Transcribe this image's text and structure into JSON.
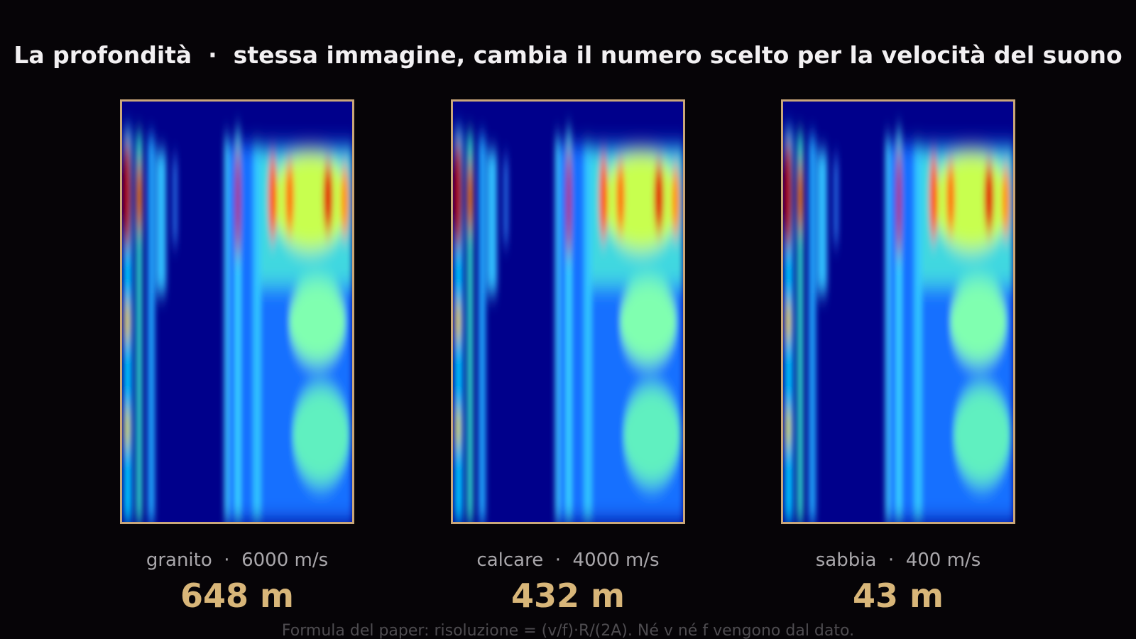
{
  "title": "La profondità  ·  stessa immagine, cambia il numero scelto per la velocità del suono",
  "panels": [
    {
      "label": "granito  ·  6000 m/s",
      "depth": "648 m"
    },
    {
      "label": "calcare  ·  4000 m/s",
      "depth": "432 m"
    },
    {
      "label": "sabbia  ·  400 m/s",
      "depth": "43 m"
    }
  ],
  "footnote": "Formula del paper: risoluzione = (v/f)·R/(2A). Né v né f vengono dal dato."
}
